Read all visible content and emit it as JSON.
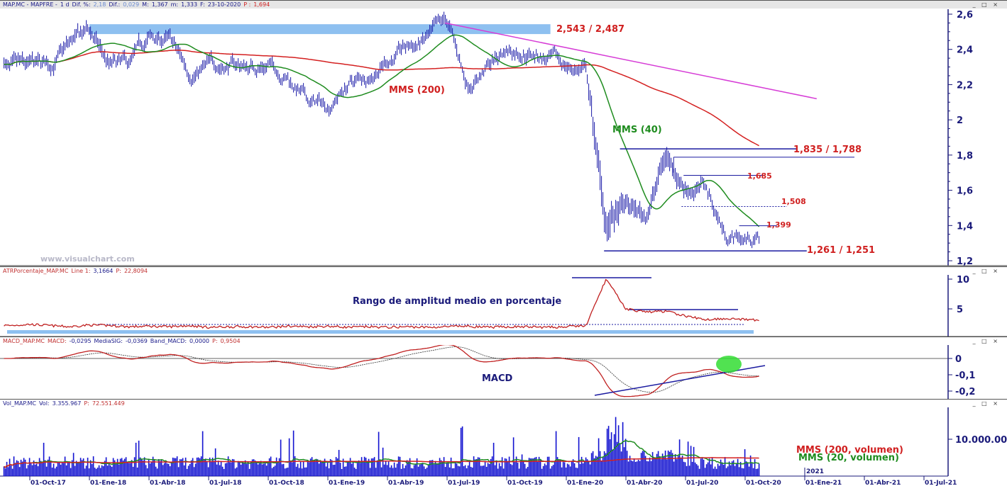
{
  "header": {
    "symbol": "MAP.MC - MAPFRE -",
    "period": "1 d",
    "dif_pct_label": "Dif. %:",
    "dif_pct": "2,18",
    "dif_label": "Dif.:",
    "dif": "0,029",
    "max_label": "M:",
    "max": "1,367",
    "min_label": "m:",
    "min": "1,333",
    "date_label": "F:",
    "date": "23-10-2020",
    "p_label": "P :",
    "p": "1,694"
  },
  "atr_header": {
    "name": "ATRPorcentaje_MAP.MC",
    "line_label": "Line 1:",
    "line": "3,1664",
    "p_label": "P:",
    "p": "22,8094"
  },
  "macd_header": {
    "name": "MACD_MAP.MC",
    "macd_label": "MACD:",
    "macd": "-0,0295",
    "sig_label": "MediaSIG:",
    "sig": "-0,0369",
    "band_label": "Band_MACD:",
    "band": "0,0000",
    "p_label": "P:",
    "p": "0,9504"
  },
  "vol_header": {
    "name": "Vol_MAP.MC",
    "vol_label": "Vol:",
    "vol": "3.355.967",
    "p_label": "P:",
    "p": "72.551.449"
  },
  "window_controls": "_ □ ×",
  "watermark": "www.visualchart.com",
  "colors": {
    "price": "#1a1aa8",
    "ma200": "#d42020",
    "ma40": "#1f8c1f",
    "trend": "#d63cd6",
    "band": "#8ec0f0",
    "axis": "#1a1a7a"
  },
  "chart_data": [
    {
      "type": "line",
      "title": "MAP.MC - MAPFRE - 1 d",
      "x_unit": "months since 01-Aug-2017",
      "x_start": 0.7,
      "x_end": 38.75,
      "monthly_close": [
        2.48,
        2.28,
        2.28,
        2.3,
        2.42,
        2.5,
        2.3,
        2.3,
        2.45,
        2.45,
        2.27,
        2.3,
        2.32,
        2.3,
        2.32,
        2.25,
        2.1,
        2.08,
        2.2,
        2.25,
        2.35,
        2.4,
        2.45,
        2.54,
        2.2,
        2.3,
        2.4,
        2.4,
        2.35,
        2.3,
        2.28,
        1.4,
        1.5,
        1.45,
        1.8,
        1.62,
        1.62,
        1.35,
        1.33
      ],
      "series": [
        {
          "name": "MMS (200)"
        },
        {
          "name": "MMS (40)"
        }
      ],
      "ylim": [
        1.2,
        2.6
      ],
      "yticks": [
        "2,6",
        "2,4",
        "2,2",
        "2",
        "1,8",
        "1,6",
        "1,4",
        "1,2"
      ],
      "xticks": [
        {
          "m": 2,
          "label": "01-Oct-17"
        },
        {
          "m": 5,
          "label": "01-Ene-18"
        },
        {
          "m": 8,
          "label": "01-Abr-18"
        },
        {
          "m": 11,
          "label": "01-Jul-18"
        },
        {
          "m": 14,
          "label": "01-Oct-18"
        },
        {
          "m": 17,
          "label": "01-Ene-19"
        },
        {
          "m": 20,
          "label": "01-Abr-19"
        },
        {
          "m": 23,
          "label": "01-Jul-19"
        },
        {
          "m": 26,
          "label": "01-Oct-19"
        },
        {
          "m": 29,
          "label": "01-Ene-20"
        },
        {
          "m": 32,
          "label": "01-Abr-20"
        },
        {
          "m": 35,
          "label": "01-Jul-20"
        },
        {
          "m": 38,
          "label": "01-Oct-20"
        },
        {
          "m": 41,
          "label": "01-Ene-21"
        },
        {
          "m": 44,
          "label": "01-Abr-21"
        },
        {
          "m": 47,
          "label": "01-Jul-21"
        }
      ],
      "year_marker": {
        "m": 41,
        "label": "2021"
      },
      "annotations": [
        {
          "label": "2,543 / 2,487",
          "kind": "band",
          "y1": 2.543,
          "y2": 2.487,
          "m1": 5,
          "m2": 28.2
        },
        {
          "label": "1,835 / 1,788",
          "kind": "double",
          "levels": [
            {
              "y": 1.835,
              "m1": 31.7,
              "m2": 40.6
            },
            {
              "y": 1.788,
              "m1": 34.4,
              "m2": 43.5
            }
          ]
        },
        {
          "label": "1,685",
          "kind": "line",
          "y": 1.685,
          "m1": 34.9,
          "m2": 38.9
        },
        {
          "label": "1,508",
          "kind": "dotted",
          "y": 1.508,
          "m1": 34.8,
          "m2": 40.1
        },
        {
          "label": "1,399",
          "kind": "line",
          "y": 1.399,
          "m1": 37.7,
          "m2": 39.6
        },
        {
          "label": "1,261 / 1,251",
          "kind": "line",
          "y": 1.256,
          "m1": 30.9,
          "m2": 41.1
        },
        {
          "label": "MMS (200)",
          "kind": "text"
        },
        {
          "label": "MMS (40)",
          "kind": "text"
        }
      ],
      "trendline": {
        "m1": 22.9,
        "y1": 2.55,
        "m2": 41.6,
        "y2": 2.12
      }
    },
    {
      "type": "line",
      "title": "Rango de amplitud medio en porcentaje",
      "ylim": [
        0,
        10
      ],
      "yticks": [
        "10",
        "5"
      ],
      "monthly": [
        2.3,
        2.2,
        2.4,
        2.2,
        2.0,
        2.3,
        2.2,
        2.0,
        2.1,
        2.0,
        2.2,
        1.9,
        2.0,
        2.0,
        1.9,
        2.1,
        2.0,
        2.1,
        1.9,
        2.0,
        1.9,
        2.0,
        1.9,
        2.0,
        2.1,
        1.9,
        2.0,
        2.0,
        1.9,
        2.0,
        2.2,
        10.0,
        5.0,
        4.5,
        4.6,
        3.8,
        3.2,
        3.4,
        3.2
      ],
      "annotation": "Rango de amplitud medio en porcentaje"
    },
    {
      "type": "line",
      "title": "MACD",
      "ylim": [
        -0.23,
        0.05
      ],
      "yticks": [
        "0",
        "-0,1",
        "-0,2"
      ],
      "annotation": "MACD"
    },
    {
      "type": "bar",
      "title": "Volumen",
      "yticks": [
        "10.000.00"
      ],
      "legend": [
        "MMS (200, volumen)",
        "MMS (20, volumen)"
      ]
    }
  ]
}
